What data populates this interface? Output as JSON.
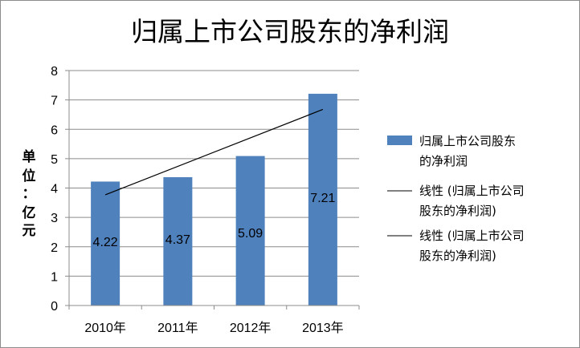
{
  "chart_data": {
    "type": "bar",
    "title": "归属上市公司股东的净利润",
    "ylabel_lines": [
      "单",
      "位",
      "：",
      "亿",
      "元"
    ],
    "categories": [
      "2010年",
      "2011年",
      "2012年",
      "2013年"
    ],
    "series": [
      {
        "name": "归属上市公司股东的净利润",
        "values": [
          4.22,
          4.37,
          5.09,
          7.21
        ],
        "data_labels": [
          "4.22",
          "4.37",
          "5.09",
          "7.21"
        ],
        "color": "#4f81bd"
      }
    ],
    "trendlines": [
      {
        "name": "线性 (归属上市公司股东的净利润)",
        "color": "#000000"
      },
      {
        "name": "线性 (归属上市公司股东的净利润)",
        "color": "#000000"
      }
    ],
    "ylim": [
      0,
      8
    ],
    "yticks": [
      "0",
      "1",
      "2",
      "3",
      "4",
      "5",
      "6",
      "7",
      "8"
    ],
    "grid": true,
    "legend_position": "right"
  }
}
